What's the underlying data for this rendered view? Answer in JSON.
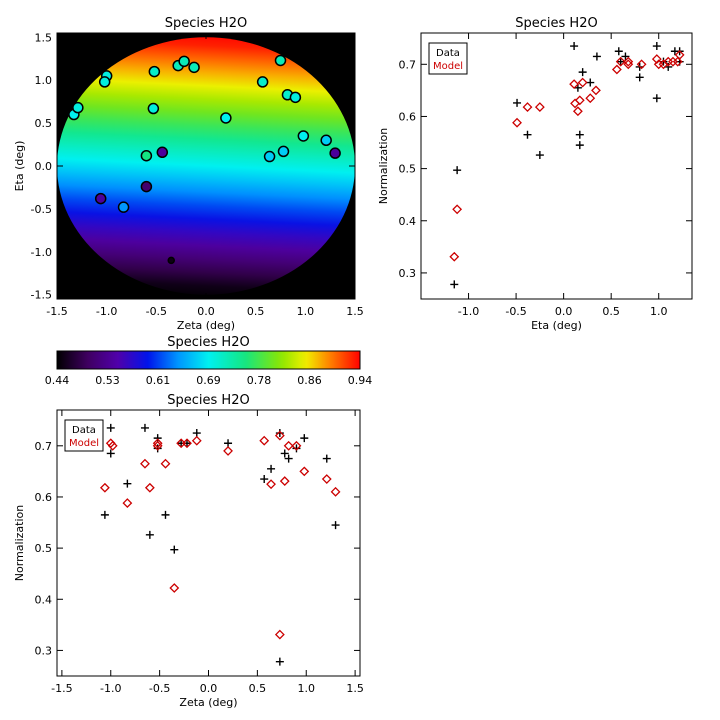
{
  "chart_data": [
    {
      "type": "heatmap",
      "title": "Species H2O",
      "xlabel": "Zeta (deg)",
      "ylabel": "Eta (deg)",
      "xlim": [
        -1.5,
        1.5
      ],
      "ylim": [
        -1.55,
        1.55
      ],
      "xticks": [
        "-1.5",
        "-1.0",
        "-0.5",
        "0.0",
        "0.5",
        "1.0",
        "1.5"
      ],
      "yticks": [
        "-1.5",
        "-1.0",
        "-0.5",
        "0.0",
        "0.5",
        "1.0",
        "1.5"
      ],
      "field_model": {
        "intercept": 0.69,
        "slope_zeta": 0.015,
        "slope_eta": 0.17,
        "radius": 1.5
      },
      "points": [
        {
          "zeta": -1.33,
          "eta": 0.6,
          "value": 0.69
        },
        {
          "zeta": -1.29,
          "eta": 0.68,
          "value": 0.7
        },
        {
          "zeta": -1.0,
          "eta": 1.05,
          "value": 0.7
        },
        {
          "zeta": -1.02,
          "eta": 0.98,
          "value": 0.7
        },
        {
          "zeta": -0.52,
          "eta": 1.1,
          "value": 0.71
        },
        {
          "zeta": -0.28,
          "eta": 1.17,
          "value": 0.72
        },
        {
          "zeta": -0.22,
          "eta": 1.22,
          "value": 0.72
        },
        {
          "zeta": -0.12,
          "eta": 1.15,
          "value": 0.72
        },
        {
          "zeta": -0.53,
          "eta": 0.67,
          "value": 0.7
        },
        {
          "zeta": 0.2,
          "eta": 0.56,
          "value": 0.69
        },
        {
          "zeta": 0.57,
          "eta": 0.98,
          "value": 0.71
        },
        {
          "zeta": 0.75,
          "eta": 1.23,
          "value": 0.72
        },
        {
          "zeta": 0.82,
          "eta": 0.83,
          "value": 0.71
        },
        {
          "zeta": 0.9,
          "eta": 0.8,
          "value": 0.7
        },
        {
          "zeta": 0.98,
          "eta": 0.35,
          "value": 0.69
        },
        {
          "zeta": 0.64,
          "eta": 0.11,
          "value": 0.67
        },
        {
          "zeta": 0.78,
          "eta": 0.17,
          "value": 0.67
        },
        {
          "zeta": 1.21,
          "eta": 0.3,
          "value": 0.67
        },
        {
          "zeta": 1.3,
          "eta": 0.15,
          "value": 0.53
        },
        {
          "zeta": -0.6,
          "eta": 0.12,
          "value": 0.75
        },
        {
          "zeta": -0.44,
          "eta": 0.16,
          "value": 0.53
        },
        {
          "zeta": -1.06,
          "eta": -0.38,
          "value": 0.53
        },
        {
          "zeta": -0.83,
          "eta": -0.48,
          "value": 0.64
        },
        {
          "zeta": -0.6,
          "eta": -0.24,
          "value": 0.5
        },
        {
          "zeta": -0.35,
          "eta": -1.1,
          "value": 0.45
        }
      ]
    },
    {
      "type": "colorbar",
      "title": "Species H2O",
      "range": [
        0.44,
        0.94
      ],
      "ticks": [
        "0.44",
        "0.53",
        "0.61",
        "0.69",
        "0.78",
        "0.86",
        "0.94"
      ]
    },
    {
      "type": "scatter",
      "title": "Species H2O",
      "xlabel": "Eta (deg)",
      "ylabel": "Normalization",
      "xlim": [
        -1.5,
        1.35
      ],
      "ylim": [
        0.25,
        0.76
      ],
      "xticks": [
        "-1.0",
        "-0.5",
        "0.0",
        "0.5",
        "1.0"
      ],
      "yticks": [
        "0.3",
        "0.4",
        "0.5",
        "0.6",
        "0.7"
      ],
      "legend": {
        "position": "top-left",
        "entries": [
          "Data",
          "Model"
        ]
      },
      "series": [
        {
          "name": "Data",
          "marker": "plus",
          "color": "#000000",
          "points": [
            [
              -1.12,
              0.497
            ],
            [
              -1.15,
              0.278
            ],
            [
              -0.49,
              0.626
            ],
            [
              -0.38,
              0.565
            ],
            [
              -0.25,
              0.526
            ],
            [
              0.11,
              0.735
            ],
            [
              0.15,
              0.655
            ],
            [
              0.17,
              0.545
            ],
            [
              0.17,
              0.565
            ],
            [
              0.2,
              0.685
            ],
            [
              0.28,
              0.665
            ],
            [
              0.35,
              0.715
            ],
            [
              0.58,
              0.725
            ],
            [
              0.6,
              0.705
            ],
            [
              0.65,
              0.715
            ],
            [
              0.8,
              0.695
            ],
            [
              0.8,
              0.675
            ],
            [
              0.98,
              0.735
            ],
            [
              0.98,
              0.635
            ],
            [
              1.05,
              0.705
            ],
            [
              1.1,
              0.695
            ],
            [
              1.17,
              0.725
            ],
            [
              1.22,
              0.725
            ],
            [
              1.22,
              0.705
            ]
          ]
        },
        {
          "name": "Model",
          "marker": "diamond",
          "color": "#cc0000",
          "points": [
            [
              -1.12,
              0.422
            ],
            [
              -1.15,
              0.331
            ],
            [
              -0.49,
              0.588
            ],
            [
              -0.38,
              0.618
            ],
            [
              -0.25,
              0.618
            ],
            [
              0.11,
              0.662
            ],
            [
              0.12,
              0.625
            ],
            [
              0.15,
              0.61
            ],
            [
              0.17,
              0.631
            ],
            [
              0.2,
              0.665
            ],
            [
              0.28,
              0.635
            ],
            [
              0.34,
              0.65
            ],
            [
              0.56,
              0.69
            ],
            [
              0.6,
              0.705
            ],
            [
              0.68,
              0.705
            ],
            [
              0.68,
              0.7
            ],
            [
              0.82,
              0.7
            ],
            [
              0.98,
              0.71
            ],
            [
              1.0,
              0.7
            ],
            [
              1.05,
              0.7
            ],
            [
              1.1,
              0.705
            ],
            [
              1.15,
              0.705
            ],
            [
              1.2,
              0.705
            ],
            [
              1.22,
              0.718
            ]
          ]
        }
      ]
    },
    {
      "type": "scatter",
      "title": "Species H2O",
      "xlabel": "Zeta (deg)",
      "ylabel": "Normalization",
      "xlim": [
        -1.55,
        1.55
      ],
      "ylim": [
        0.25,
        0.77
      ],
      "xticks": [
        "-1.5",
        "-1.0",
        "-0.5",
        "0.0",
        "0.5",
        "1.0",
        "1.5"
      ],
      "yticks": [
        "0.3",
        "0.4",
        "0.5",
        "0.6",
        "0.7"
      ],
      "legend": {
        "position": "top-left",
        "entries": [
          "Data",
          "Model"
        ]
      },
      "series": [
        {
          "name": "Data",
          "marker": "plus",
          "color": "#000000",
          "points": [
            [
              -1.33,
              0.735
            ],
            [
              -1.29,
              0.725
            ],
            [
              -1.0,
              0.735
            ],
            [
              -1.0,
              0.685
            ],
            [
              -1.06,
              0.565
            ],
            [
              -0.83,
              0.626
            ],
            [
              -0.65,
              0.735
            ],
            [
              -0.6,
              0.526
            ],
            [
              -0.52,
              0.715
            ],
            [
              -0.52,
              0.695
            ],
            [
              -0.44,
              0.565
            ],
            [
              -0.35,
              0.497
            ],
            [
              -0.28,
              0.705
            ],
            [
              -0.22,
              0.705
            ],
            [
              -0.12,
              0.725
            ],
            [
              0.2,
              0.705
            ],
            [
              0.57,
              0.635
            ],
            [
              0.64,
              0.655
            ],
            [
              0.73,
              0.725
            ],
            [
              0.73,
              0.278
            ],
            [
              0.78,
              0.685
            ],
            [
              0.82,
              0.675
            ],
            [
              0.9,
              0.695
            ],
            [
              0.98,
              0.715
            ],
            [
              1.21,
              0.675
            ],
            [
              1.3,
              0.545
            ]
          ]
        },
        {
          "name": "Model",
          "marker": "diamond",
          "color": "#cc0000",
          "points": [
            [
              -1.33,
              0.71
            ],
            [
              -1.29,
              0.705
            ],
            [
              -1.0,
              0.705
            ],
            [
              -0.98,
              0.7
            ],
            [
              -1.06,
              0.618
            ],
            [
              -0.83,
              0.588
            ],
            [
              -0.65,
              0.665
            ],
            [
              -0.6,
              0.618
            ],
            [
              -0.52,
              0.705
            ],
            [
              -0.52,
              0.7
            ],
            [
              -0.44,
              0.665
            ],
            [
              -0.35,
              0.422
            ],
            [
              -0.28,
              0.705
            ],
            [
              -0.22,
              0.705
            ],
            [
              -0.12,
              0.71
            ],
            [
              0.2,
              0.69
            ],
            [
              0.57,
              0.71
            ],
            [
              0.64,
              0.625
            ],
            [
              0.73,
              0.72
            ],
            [
              0.73,
              0.331
            ],
            [
              0.78,
              0.631
            ],
            [
              0.82,
              0.7
            ],
            [
              0.9,
              0.7
            ],
            [
              0.98,
              0.65
            ],
            [
              1.21,
              0.635
            ],
            [
              1.3,
              0.61
            ]
          ]
        }
      ]
    }
  ]
}
